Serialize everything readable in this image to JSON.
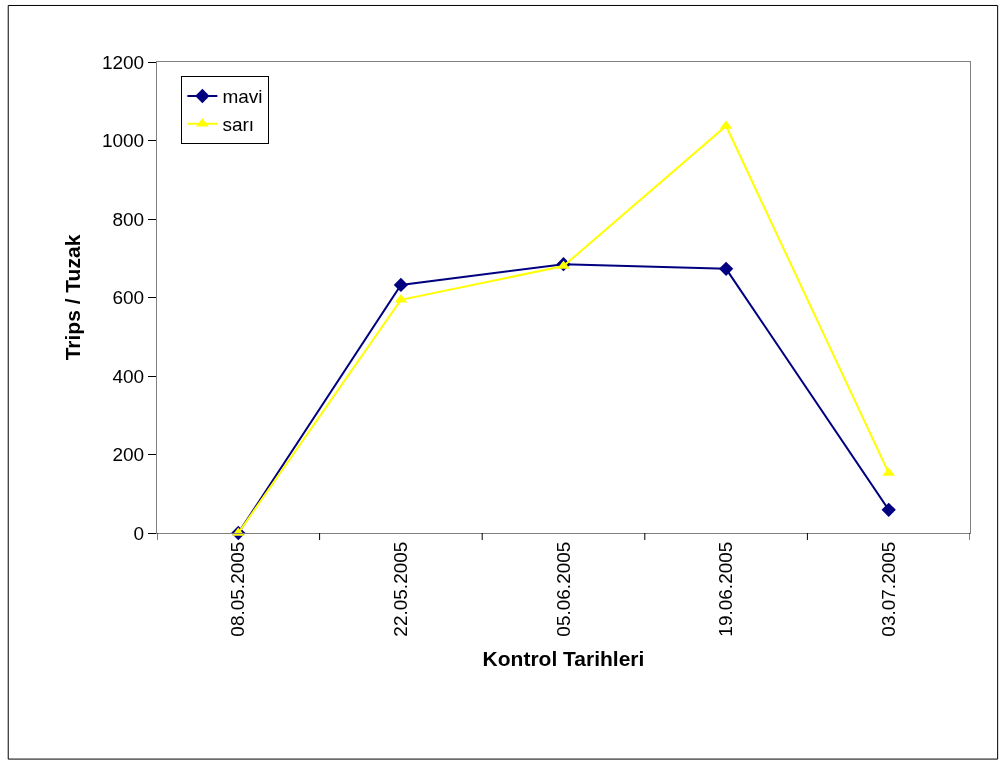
{
  "chart_data": {
    "type": "line",
    "xlabel": "Kontrol Tarihleri",
    "ylabel": "Trips / Tuzak",
    "categories": [
      "08.05.2005",
      "22.05.2005",
      "05.06.2005",
      "19.06.2005",
      "03.07.2005"
    ],
    "series": [
      {
        "name": "mavi",
        "color": "#000080",
        "values": [
          0,
          632,
          685,
          673,
          59
        ],
        "marker": "diamond"
      },
      {
        "name": "sarı",
        "color": "#ffff00",
        "values": [
          0,
          594,
          680,
          1037,
          153
        ],
        "marker": "triangle"
      }
    ],
    "ylim": [
      0,
      1200
    ],
    "yticks": [
      0,
      200,
      400,
      600,
      800,
      1000,
      1200
    ],
    "legend": "top left",
    "line_style": "solid"
  }
}
